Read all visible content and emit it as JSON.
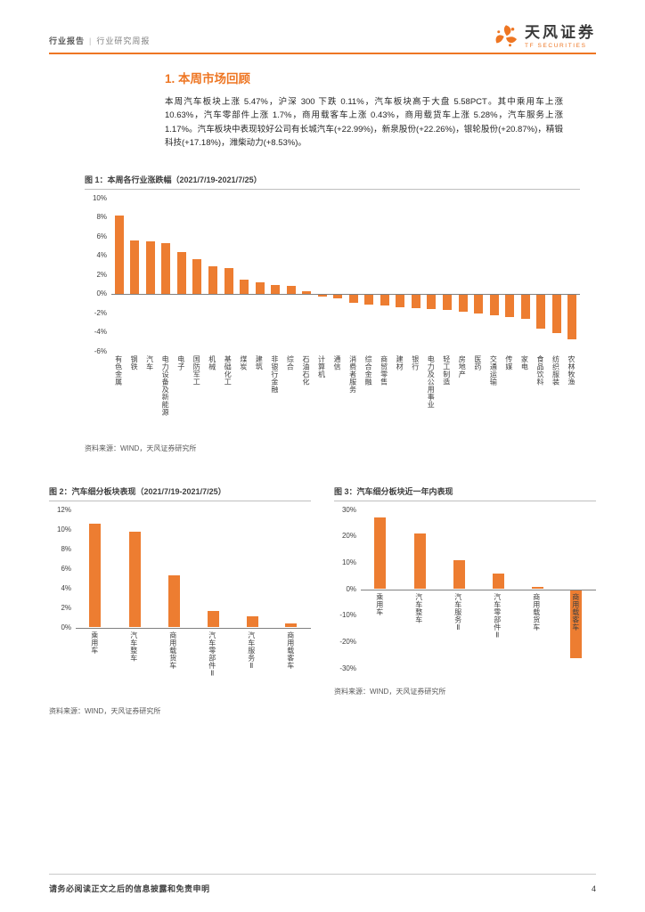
{
  "header": {
    "category": "行业报告",
    "separator": "|",
    "subtitle": "行业研究周报",
    "logo_cn": "天风证券",
    "logo_en": "TF SECURITIES"
  },
  "section": {
    "title": "1. 本周市场回顾",
    "paragraph": "本周汽车板块上涨 5.47%，沪深 300 下跌 0.11%，汽车板块高于大盘 5.58PCT。其中乘用车上涨 10.63%，汽车零部件上涨 1.7%，商用载客车上涨 0.43%，商用载货车上涨 5.28%，汽车服务上涨 1.17%。汽车板块中表现较好公司有长城汽车(+22.99%)，新泉股份(+22.26%)，银轮股份(+20.87%)，精锻科技(+17.18%)，潍柴动力(+8.53%)。"
  },
  "figures": [
    {
      "caption": "图 1：本周各行业涨跌幅（2021/7/19-2021/7/25）",
      "source": "资料来源：WIND，天风证券研究所"
    },
    {
      "caption": "图 2：汽车细分板块表现（2021/7/19-2021/7/25）",
      "source": "资料来源：WIND，天风证券研究所"
    },
    {
      "caption": "图 3：汽车细分板块近一年内表现",
      "source": "资料来源：WIND，天风证券研究所"
    }
  ],
  "chart_data": [
    {
      "type": "bar",
      "title": "本周各行业涨跌幅（2021/7/19-2021/7/25）",
      "categories": [
        "有色金属",
        "钢铁",
        "汽车",
        "电力设备及新能源",
        "电子",
        "国防军工",
        "机械",
        "基础化工",
        "煤炭",
        "建筑",
        "非银行金融",
        "综合",
        "石油石化",
        "计算机",
        "通信",
        "消费者服务",
        "综合金融",
        "商贸零售",
        "建材",
        "银行",
        "电力及公用事业",
        "轻工制造",
        "房地产",
        "医药",
        "交通运输",
        "传媒",
        "家电",
        "食品饮料",
        "纺织服装",
        "农林牧渔"
      ],
      "values": [
        8.2,
        5.6,
        5.47,
        5.3,
        4.4,
        3.6,
        2.9,
        2.7,
        1.5,
        1.2,
        0.9,
        0.8,
        0.3,
        -0.3,
        -0.5,
        -0.9,
        -1.1,
        -1.2,
        -1.4,
        -1.5,
        -1.6,
        -1.7,
        -1.9,
        -2.0,
        -2.2,
        -2.4,
        -2.6,
        -3.6,
        -4.1,
        -4.7
      ],
      "ylim": [
        -6,
        10
      ],
      "yticks": [
        10,
        8,
        6,
        4,
        2,
        0,
        -2,
        -4,
        -6
      ],
      "unit": "%",
      "xlabel": "",
      "ylabel": "",
      "grid": false,
      "legend": "none"
    },
    {
      "type": "bar",
      "title": "汽车细分板块表现（2021/7/19-2021/7/25）",
      "categories": [
        "乘用车",
        "汽车整车",
        "商用载货车",
        "汽车零部件Ⅱ",
        "汽车服务Ⅱ",
        "商用载客车"
      ],
      "values": [
        10.63,
        9.8,
        5.28,
        1.7,
        1.17,
        0.43
      ],
      "ylim": [
        0,
        12
      ],
      "yticks": [
        12,
        10,
        8,
        6,
        4,
        2,
        0
      ],
      "unit": "%",
      "xlabel": "",
      "ylabel": "",
      "grid": false,
      "legend": "none"
    },
    {
      "type": "bar",
      "title": "汽车细分板块近一年内表现",
      "categories": [
        "乘用车",
        "汽车整车",
        "汽车服务Ⅱ",
        "汽车零部件Ⅱ",
        "商用载货车",
        "商用载客车"
      ],
      "values": [
        27,
        21,
        11,
        6,
        1,
        -26
      ],
      "ylim": [
        -30,
        30
      ],
      "yticks": [
        30,
        20,
        10,
        0,
        -10,
        -20,
        -30
      ],
      "unit": "%",
      "xlabel": "",
      "ylabel": "",
      "grid": false,
      "legend": "none"
    }
  ],
  "footer": {
    "disclaimer": "请务必阅读正文之后的信息披露和免责申明",
    "page_number": "4"
  },
  "colors": {
    "accent": "#EE7623",
    "bar": "#ED7D31"
  }
}
